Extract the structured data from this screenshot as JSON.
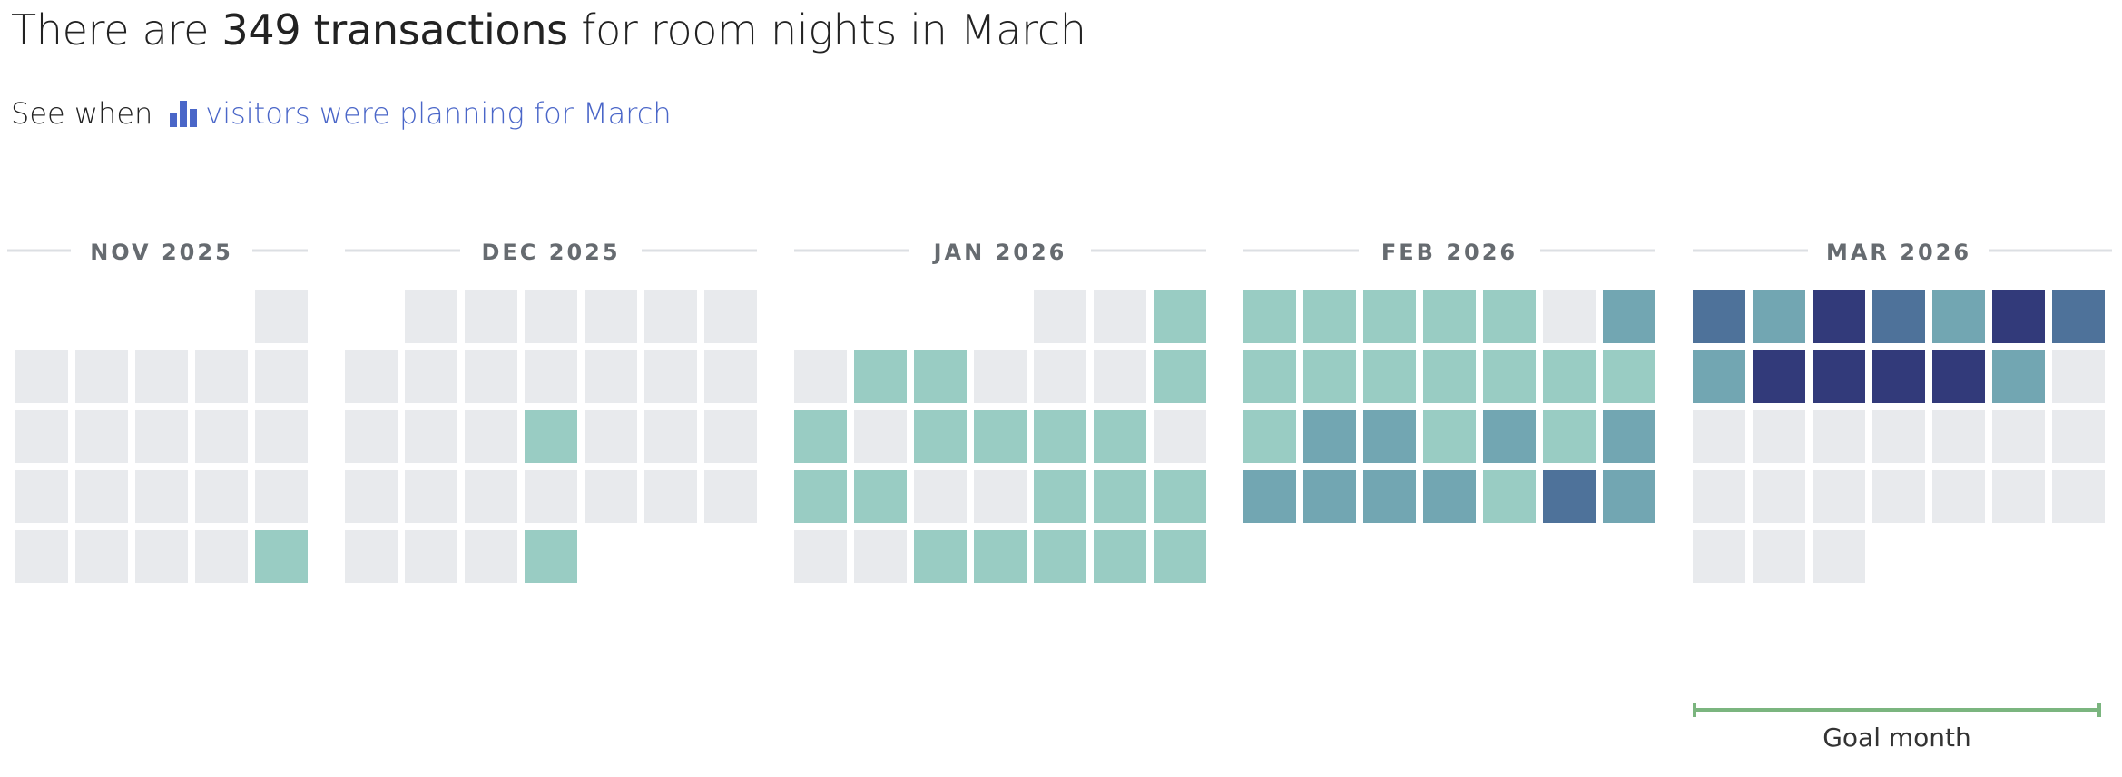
{
  "headline": {
    "prefix": "There are",
    "count": "349 transactions",
    "suffix": "for room nights in March"
  },
  "subline": {
    "see_when": "See when",
    "link_label": "visitors were planning for March",
    "link_icon": "bar-chart-icon"
  },
  "goal": {
    "label": "Goal month",
    "month": "MAR 2026",
    "color": "#7bb57f"
  },
  "colors": {
    "level0": "#e8eaed",
    "level1": "#99ccc3",
    "level2": "#72a6b2",
    "level3": "#4e729a",
    "level4": "#323a7a",
    "link": "#4a66c8"
  },
  "chart_data": {
    "type": "heatmap",
    "title": "",
    "levels": "0 = no transactions, 4 = most transactions (relative intensity)",
    "weeks_start": "Sunday",
    "months": [
      {
        "label": "NOV 2025",
        "weeks": [
          [
            null,
            null,
            null,
            null,
            0
          ],
          [
            0,
            0,
            0,
            0,
            0
          ],
          [
            0,
            0,
            0,
            0,
            0
          ],
          [
            0,
            0,
            0,
            0,
            0
          ],
          [
            0,
            0,
            0,
            0,
            1
          ]
        ]
      },
      {
        "label": "DEC 2025",
        "weeks": [
          [
            null,
            0,
            0,
            0,
            0,
            0,
            0
          ],
          [
            0,
            0,
            0,
            0,
            0,
            0,
            0
          ],
          [
            0,
            0,
            0,
            1,
            0,
            0,
            0
          ],
          [
            0,
            0,
            0,
            0,
            0,
            0,
            0
          ],
          [
            0,
            0,
            0,
            1,
            null,
            null,
            null
          ]
        ]
      },
      {
        "label": "JAN 2026",
        "weeks": [
          [
            null,
            null,
            null,
            null,
            0,
            0,
            1
          ],
          [
            0,
            1,
            1,
            0,
            0,
            0,
            1
          ],
          [
            1,
            0,
            1,
            1,
            1,
            1,
            0
          ],
          [
            1,
            1,
            0,
            0,
            1,
            1,
            1
          ],
          [
            0,
            0,
            1,
            1,
            1,
            1,
            1
          ]
        ]
      },
      {
        "label": "FEB 2026",
        "weeks": [
          [
            1,
            1,
            1,
            1,
            1,
            0,
            2
          ],
          [
            1,
            1,
            1,
            1,
            1,
            1,
            1
          ],
          [
            1,
            2,
            2,
            1,
            2,
            1,
            2
          ],
          [
            2,
            2,
            2,
            2,
            1,
            3,
            2
          ]
        ]
      },
      {
        "label": "MAR 2026",
        "weeks": [
          [
            3,
            2,
            4,
            3,
            2,
            4,
            3
          ],
          [
            2,
            4,
            4,
            4,
            4,
            2,
            0
          ],
          [
            0,
            0,
            0,
            0,
            0,
            0,
            0
          ],
          [
            0,
            0,
            0,
            0,
            0,
            0,
            0
          ],
          [
            0,
            0,
            0,
            null,
            null,
            null,
            null
          ]
        ]
      }
    ]
  }
}
